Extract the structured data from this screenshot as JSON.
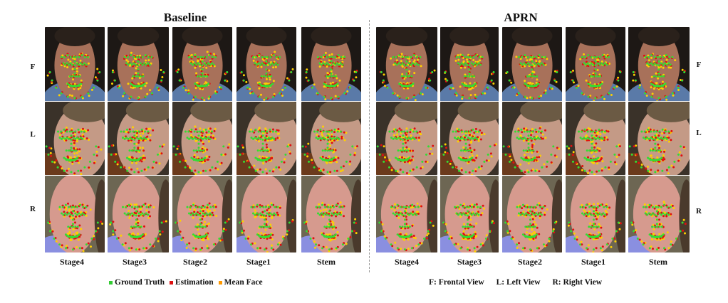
{
  "panels": [
    {
      "title": "Baseline"
    },
    {
      "title": "APRN"
    }
  ],
  "stages": [
    "Stage4",
    "Stage3",
    "Stage2",
    "Stage1",
    "Stem"
  ],
  "rows": [
    {
      "label": "F",
      "view": "frontal"
    },
    {
      "label": "L",
      "view": "left"
    },
    {
      "label": "R",
      "view": "right"
    }
  ],
  "legend_left": [
    {
      "label": "Ground Truth",
      "color": "#33cc33"
    },
    {
      "label": "Estimation",
      "color": "#dd1111"
    },
    {
      "label": "Mean Face",
      "color": "#ff9900"
    }
  ],
  "legend_right": [
    "F: Frontal View",
    "L: Left View",
    "R: Right View"
  ],
  "colors": {
    "ground_truth": "#33dd33",
    "estimation": "#e01010",
    "mean_face": "#ffd000"
  }
}
